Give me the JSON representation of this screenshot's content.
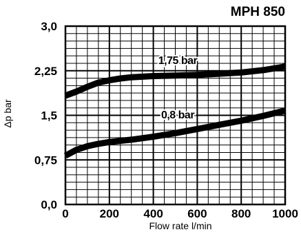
{
  "chart_data": {
    "type": "line",
    "title": "MPH 850",
    "xlabel": "Flow rate l/min",
    "ylabel": "Δp bar",
    "xlim": [
      0,
      1000
    ],
    "ylim": [
      0,
      3.0
    ],
    "x_ticks": [
      "0",
      "200",
      "400",
      "600",
      "800",
      "1000"
    ],
    "y_ticks": [
      "0,0",
      "0,75",
      "1,5",
      "2,25",
      "3,0"
    ],
    "grid": true,
    "series": [
      {
        "name": "1,75 bar",
        "x": [
          0,
          50,
          100,
          150,
          200,
          250,
          300,
          400,
          500,
          600,
          700,
          800,
          900,
          1000
        ],
        "y": [
          1.83,
          1.9,
          1.98,
          2.05,
          2.09,
          2.12,
          2.14,
          2.16,
          2.17,
          2.18,
          2.2,
          2.22,
          2.26,
          2.32
        ]
      },
      {
        "name": "0,8 bar",
        "x": [
          0,
          50,
          100,
          150,
          200,
          300,
          400,
          500,
          600,
          700,
          800,
          900,
          1000
        ],
        "y": [
          0.82,
          0.92,
          0.98,
          1.02,
          1.05,
          1.09,
          1.14,
          1.2,
          1.27,
          1.34,
          1.41,
          1.49,
          1.58
        ]
      }
    ],
    "series_label_positions": [
      {
        "x": 420,
        "y": 2.4
      },
      {
        "x": 420,
        "y": 1.56
      }
    ]
  }
}
